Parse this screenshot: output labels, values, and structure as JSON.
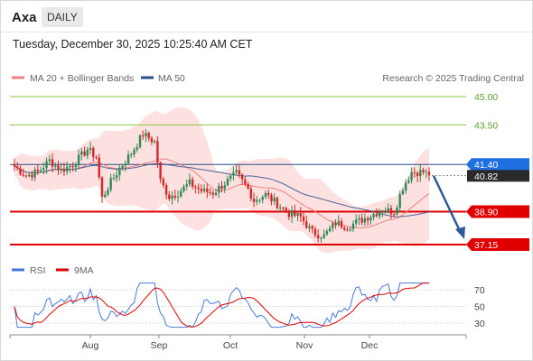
{
  "header": {
    "ticker": "Axa",
    "period": "DAILY",
    "datetime": "Tuesday, December 30, 2025 10:25:40 AM CET"
  },
  "legend": {
    "ma20_bb": "MA 20 + Bollinger Bands",
    "ma50": "MA 50",
    "credit": "Research © 2025 Trading Central",
    "rsi": "RSI",
    "ma9": "9MA"
  },
  "colors": {
    "up": "#2e8b57",
    "down": "#d62728",
    "ma20": "#f08080",
    "ma50": "#2b4f8c",
    "band": "#fde0e0",
    "green_level": "#8cc63f",
    "red_level": "#e00000",
    "blue_tag": "#1e6fe0",
    "dark_tag": "#2a2a2a",
    "arrow": "#2f5a9a"
  },
  "chart_data": [
    {
      "type": "candlestick",
      "x_labels": [
        "Aug",
        "Sep",
        "Oct",
        "Nov",
        "Dec"
      ],
      "ylim": [
        36.7,
        46.0
      ],
      "levels": [
        {
          "value": 45.0,
          "label": "45.00",
          "style": "resistance-green"
        },
        {
          "value": 43.5,
          "label": "43.50",
          "style": "resistance-green"
        },
        {
          "value": 41.4,
          "label": "41.40",
          "style": "pivot-blue"
        },
        {
          "value": 38.9,
          "label": "38.90",
          "style": "support-red"
        },
        {
          "value": 37.15,
          "label": "37.15",
          "style": "support-red"
        }
      ],
      "last_price": {
        "value": 40.82,
        "label": "40.82"
      },
      "projection": {
        "from": 40.8,
        "to": 37.15
      }
    },
    {
      "type": "line",
      "series": [
        {
          "name": "RSI"
        },
        {
          "name": "9MA"
        }
      ],
      "ylim": [
        20,
        80
      ],
      "y_ticks": [
        {
          "value": 70,
          "label": "70"
        },
        {
          "value": 50,
          "label": "50"
        },
        {
          "value": 30,
          "label": "30"
        }
      ]
    }
  ]
}
